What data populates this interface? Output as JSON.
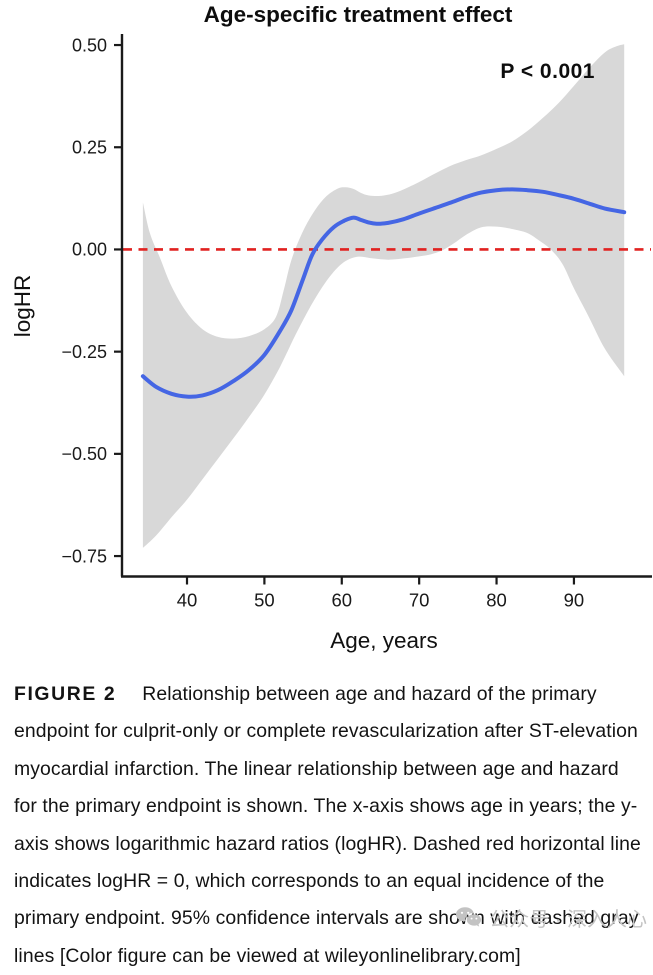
{
  "page": {
    "background": "#ffffff"
  },
  "chart_data": {
    "type": "line",
    "title": "Age-specific treatment effect",
    "annotation": "P < 0.001",
    "xlabel": "Age, years",
    "ylabel": "logHR",
    "xlim": [
      31.6,
      99.7
    ],
    "ylim": [
      -0.8,
      0.527
    ],
    "x_ticks": [
      40,
      50,
      60,
      70,
      80,
      90
    ],
    "y_ticks": [
      0.5,
      0.25,
      0.0,
      -0.25,
      -0.5,
      -0.75
    ],
    "grid": false,
    "legend": "none",
    "reference_line": {
      "y": 0,
      "style": "dashed",
      "color": "#e12220"
    },
    "band_color": "#d8d8d8",
    "line_color": "#4566e4",
    "axis_color": "#1a1a1a",
    "series": [
      {
        "name": "logHR estimate",
        "x": [
          34.3,
          36,
          38,
          40,
          42,
          44,
          46,
          48,
          50,
          52,
          53.5,
          55,
          56.2,
          57.5,
          59,
          60.3,
          61.5,
          62.5,
          63.5,
          64.5,
          66,
          68,
          70,
          72,
          74,
          76,
          78,
          80,
          82,
          84,
          86,
          88,
          90,
          92,
          94,
          96.5
        ],
        "y": [
          -0.31,
          -0.336,
          -0.353,
          -0.36,
          -0.357,
          -0.344,
          -0.322,
          -0.295,
          -0.258,
          -0.2,
          -0.148,
          -0.072,
          -0.012,
          0.025,
          0.055,
          0.07,
          0.078,
          0.072,
          0.066,
          0.063,
          0.065,
          0.074,
          0.088,
          0.101,
          0.114,
          0.128,
          0.139,
          0.145,
          0.147,
          0.145,
          0.141,
          0.133,
          0.124,
          0.112,
          0.1,
          0.091
        ]
      },
      {
        "name": "95% CI upper",
        "x": [
          34.3,
          35.2,
          36.5,
          38,
          40,
          42,
          44,
          46,
          48,
          50,
          51.5,
          52.5,
          53.5,
          55,
          56.5,
          58,
          59.5,
          60.5,
          61.5,
          62.5,
          63.5,
          65,
          66.5,
          68,
          70,
          72,
          74,
          76,
          78,
          80,
          82,
          84,
          86,
          88,
          90,
          92,
          94,
          95.5,
          96.5
        ],
        "y": [
          0.115,
          0.04,
          -0.02,
          -0.09,
          -0.155,
          -0.195,
          -0.214,
          -0.218,
          -0.212,
          -0.195,
          -0.165,
          -0.1,
          -0.025,
          0.045,
          0.095,
          0.13,
          0.149,
          0.152,
          0.148,
          0.138,
          0.132,
          0.131,
          0.136,
          0.147,
          0.165,
          0.185,
          0.204,
          0.218,
          0.23,
          0.246,
          0.264,
          0.29,
          0.322,
          0.358,
          0.4,
          0.444,
          0.482,
          0.497,
          0.502
        ]
      },
      {
        "name": "95% CI lower",
        "x": [
          34.3,
          36,
          38,
          40,
          42,
          44,
          46,
          48,
          50,
          52,
          54,
          56,
          58,
          60,
          62,
          64,
          66,
          68,
          70,
          71.5,
          73,
          74.5,
          76,
          78,
          80,
          82,
          84,
          85.5,
          87,
          88.5,
          90,
          92,
          94,
          96.5
        ],
        "y": [
          -0.73,
          -0.7,
          -0.655,
          -0.612,
          -0.562,
          -0.512,
          -0.462,
          -0.41,
          -0.355,
          -0.288,
          -0.21,
          -0.138,
          -0.078,
          -0.035,
          -0.018,
          -0.022,
          -0.025,
          -0.022,
          -0.017,
          -0.012,
          -0.002,
          0.015,
          0.035,
          0.054,
          0.056,
          0.05,
          0.04,
          0.022,
          0.0,
          -0.035,
          -0.095,
          -0.168,
          -0.243,
          -0.31
        ]
      }
    ]
  },
  "caption": {
    "label": "FIGURE 2",
    "text": "Relationship between age and hazard of the primary endpoint for culprit-only or complete revascularization after ST-elevation myocardial infarction. The linear relationship between age and hazard for the primary endpoint is shown. The x-axis shows age in years; the y-axis shows logarithmic hazard ratios (logHR). Dashed red horizontal line indicates logHR = 0, which corresponds to an equal incidence of the primary endpoint. 95% confidence intervals are shown with dashed gray lines [Color figure can be viewed at wileyonlinelibrary.com]"
  },
  "watermark": {
    "icon": "wechat-icon",
    "text": "公众号 · 深入人心",
    "color": "#c3c3c3"
  }
}
